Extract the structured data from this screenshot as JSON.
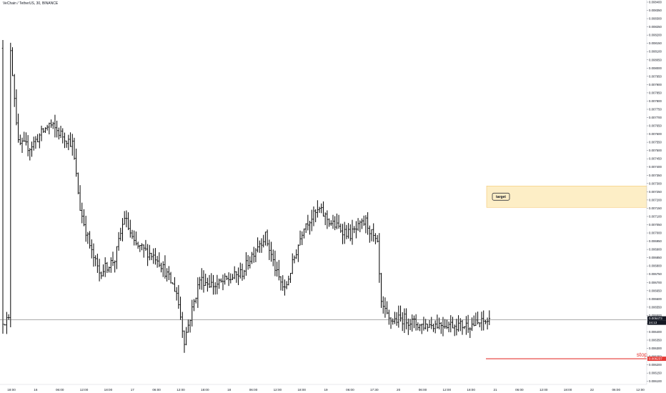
{
  "header": {
    "symbol_title": "VeChain / TetherUS, 30, BINANCE"
  },
  "chart_data": {
    "type": "ohlc",
    "title": "VeChain / TetherUS, 30, BINANCE",
    "ylim": [
      0.00609,
      0.0084
    ],
    "y_ticks": [
      "0.008400",
      "0.008350",
      "0.008300",
      "0.008250",
      "0.008200",
      "0.008150",
      "0.008100",
      "0.008050",
      "0.008000",
      "0.007950",
      "0.007900",
      "0.007850",
      "0.007800",
      "0.007750",
      "0.007700",
      "0.007650",
      "0.007600",
      "0.007550",
      "0.007500",
      "0.007450",
      "0.007400",
      "0.007350",
      "0.007300",
      "0.007250",
      "0.007200",
      "0.007150",
      "0.007100",
      "0.007050",
      "0.007000",
      "0.006950",
      "0.006900",
      "0.006850",
      "0.006800",
      "0.006750",
      "0.006700",
      "0.006650",
      "0.006600",
      "0.006550",
      "0.006500",
      "0.006450",
      "0.006400",
      "0.006350",
      "0.006300",
      "0.006250",
      "0.006200",
      "0.006150",
      "0.006100"
    ],
    "x_ticks": [
      "18:00",
      "16",
      "06:00",
      "12:00",
      "18:00",
      "17",
      "06:00",
      "12:00",
      "18:00",
      "18",
      "06:00",
      "12:00",
      "18:00",
      "19",
      "06:00",
      "17:30",
      "20",
      "06:00",
      "12:00",
      "18:00",
      "21",
      "06:00",
      "12:00",
      "18:00",
      "22",
      "06:00",
      "12:00"
    ],
    "last_price": {
      "value": "0.006473",
      "countdown": "24:13"
    },
    "stop": {
      "label": "stop",
      "value": "0.006237",
      "color": "#e53935"
    },
    "target": {
      "label": "target",
      "low": 0.007155,
      "high": 0.007285,
      "fill": "#fdeec6",
      "border": "#f5c971"
    },
    "key_points": [
      [
        "07-15 16:00",
        0.00812
      ],
      [
        "07-15 18:00",
        0.00754
      ],
      [
        "07-15 21:00",
        0.00752
      ],
      [
        "07-16 02:00",
        0.00766
      ],
      [
        "07-16 08:00",
        0.00754
      ],
      [
        "07-16 10:00",
        0.00715
      ],
      [
        "07-16 13:00",
        0.00688
      ],
      [
        "07-16 15:00",
        0.00676
      ],
      [
        "07-16 19:00",
        0.00684
      ],
      [
        "07-16 21:30",
        0.0071
      ],
      [
        "07-17 00:00",
        0.00693
      ],
      [
        "07-17 06:00",
        0.00685
      ],
      [
        "07-17 11:00",
        0.00664
      ],
      [
        "07-17 13:00",
        0.00635
      ],
      [
        "07-17 17:00",
        0.00672
      ],
      [
        "07-17 21:00",
        0.00668
      ],
      [
        "07-18 04:00",
        0.00676
      ],
      [
        "07-18 08:00",
        0.00693
      ],
      [
        "07-18 10:00",
        0.00698
      ],
      [
        "07-18 13:00",
        0.00675
      ],
      [
        "07-18 15:00",
        0.00665
      ],
      [
        "07-18 20:00",
        0.00705
      ],
      [
        "07-19 00:00",
        0.00714
      ],
      [
        "07-19 03:00",
        0.00706
      ],
      [
        "07-19 08:00",
        0.00699
      ],
      [
        "07-19 12:00",
        0.00707
      ],
      [
        "07-19 15:00",
        0.00692
      ],
      [
        "07-19 16:00",
        0.00656
      ],
      [
        "07-19 18:00",
        0.00647
      ],
      [
        "07-19 22:00",
        0.00648
      ],
      [
        "07-20 02:00",
        0.00644
      ],
      [
        "07-20 08:00",
        0.00645
      ],
      [
        "07-20 13:00",
        0.00644
      ],
      [
        "07-20 17:00",
        0.00645
      ],
      [
        "07-20 20:00",
        0.00647
      ]
    ]
  }
}
